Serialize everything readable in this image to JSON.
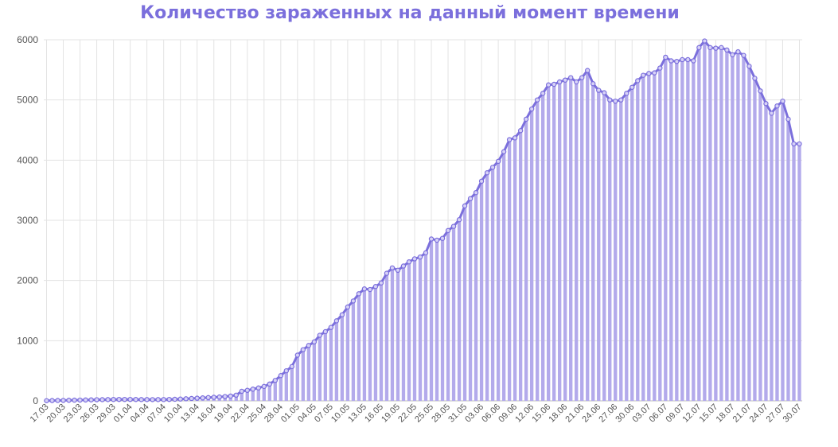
{
  "colors": {
    "accent": "#7b6fdc",
    "bar_fill": "#b3aaeb",
    "grid": "#e3e3e3",
    "tick_text": "#555555"
  },
  "chart_data": {
    "type": "bar",
    "title": "Количество зараженных на данный момент времени",
    "xlabel": "",
    "ylabel": "",
    "ylim": [
      0,
      6000
    ],
    "yticks": [
      "0",
      "1000",
      "2000",
      "3000",
      "4000",
      "5000",
      "6000"
    ],
    "start_date": "17.03",
    "x_tick_labels": [
      "17.03",
      "20.03",
      "23.03",
      "26.03",
      "29.03",
      "01.04",
      "04.04",
      "07.04",
      "10.04",
      "13.04",
      "16.04",
      "19.04",
      "22.04",
      "25.04",
      "28.04",
      "01.05",
      "04.05",
      "07.05",
      "10.05",
      "13.05",
      "16.05",
      "19.05",
      "22.05",
      "25.05",
      "28.05",
      "31.05",
      "03.06",
      "06.06",
      "09.06",
      "12.06",
      "15.06",
      "18.06",
      "21.06",
      "24.06",
      "27.06",
      "30.06",
      "03.07",
      "06.07",
      "09.07",
      "12.07",
      "15.07",
      "18.07",
      "21.07",
      "24.07",
      "27.07",
      "30.07"
    ],
    "grid": true,
    "overlay_line": true,
    "values": [
      3,
      5,
      7,
      8,
      10,
      12,
      13,
      15,
      17,
      19,
      20,
      22,
      23,
      24,
      24,
      24,
      23,
      22,
      22,
      21,
      22,
      22,
      24,
      27,
      30,
      35,
      40,
      45,
      50,
      55,
      60,
      65,
      72,
      80,
      95,
      160,
      175,
      195,
      215,
      240,
      280,
      340,
      420,
      500,
      570,
      760,
      850,
      920,
      980,
      1090,
      1150,
      1220,
      1330,
      1430,
      1560,
      1660,
      1780,
      1860,
      1850,
      1900,
      1960,
      2120,
      2210,
      2170,
      2240,
      2310,
      2360,
      2390,
      2460,
      2690,
      2670,
      2700,
      2830,
      2900,
      3010,
      3240,
      3360,
      3460,
      3650,
      3790,
      3880,
      3980,
      4140,
      4340,
      4370,
      4490,
      4680,
      4850,
      5000,
      5110,
      5250,
      5260,
      5300,
      5330,
      5370,
      5300,
      5370,
      5490,
      5270,
      5160,
      5120,
      5000,
      4980,
      5000,
      5110,
      5210,
      5320,
      5410,
      5440,
      5450,
      5530,
      5710,
      5650,
      5640,
      5670,
      5670,
      5650,
      5870,
      5980,
      5870,
      5860,
      5870,
      5830,
      5750,
      5800,
      5740,
      5560,
      5360,
      5150,
      4940,
      4780,
      4900,
      4980,
      4680,
      4270,
      4270
    ]
  }
}
